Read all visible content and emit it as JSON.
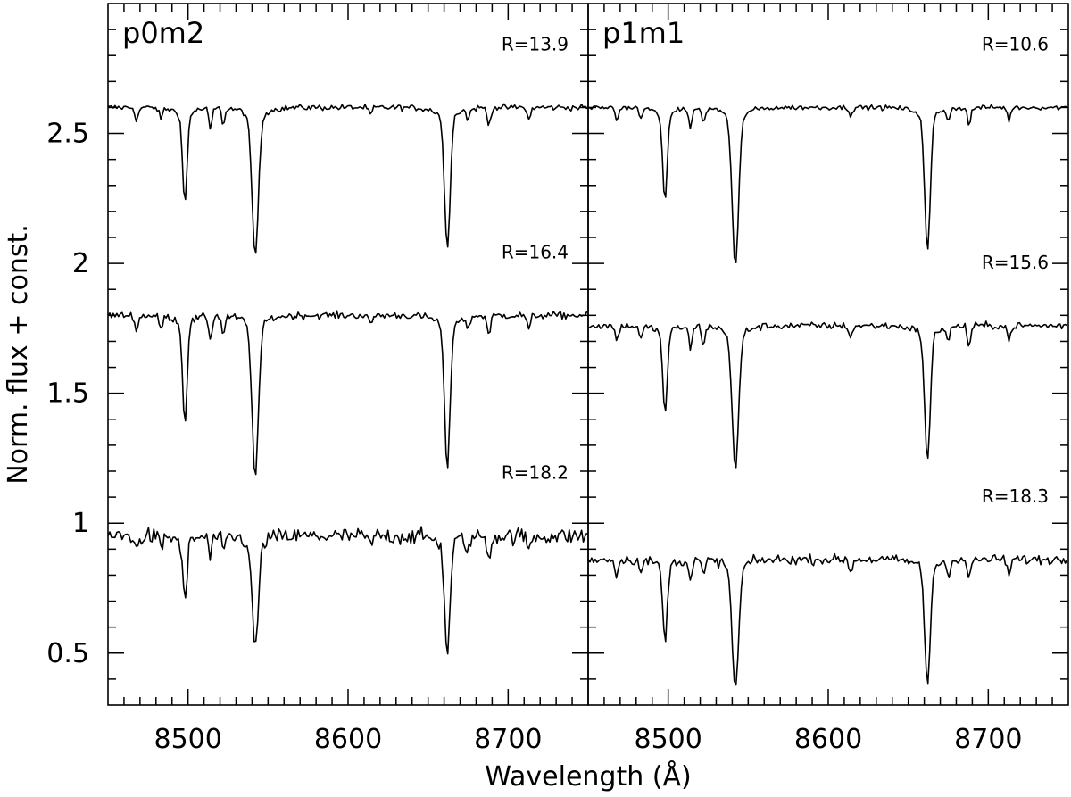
{
  "chart_data": {
    "type": "line",
    "ylabel": "Norm. flux + const.",
    "xlabel": "Wavelength (Å)",
    "xlim": [
      8450,
      8750
    ],
    "ylim": [
      0.3,
      3.0
    ],
    "x_ticks": [
      8500,
      8600,
      8700
    ],
    "y_ticks": [
      0.5,
      1,
      1.5,
      2,
      2.5
    ],
    "x_tick_labels": [
      "8500",
      "8600",
      "8700"
    ],
    "y_tick_labels": [
      "0.5",
      "1",
      "1.5",
      "2",
      "2.5"
    ],
    "grid": false,
    "line_color": "#000000",
    "panels": [
      {
        "title": "p0m2",
        "spectra": [
          {
            "label": "R=13.9",
            "continuum": 2.6,
            "noise": 0.025,
            "depths": {
              "8498": 0.33,
              "8542": 0.51,
              "8662": 0.49
            },
            "minor_lines": [
              [
                8468,
                0.05
              ],
              [
                8483,
                0.04
              ],
              [
                8514,
                0.08
              ],
              [
                8522,
                0.06
              ],
              [
                8614,
                0.03
              ],
              [
                8675,
                0.04
              ],
              [
                8688,
                0.07
              ],
              [
                8713,
                0.05
              ]
            ]
          },
          {
            "label": "R=16.4",
            "continuum": 1.8,
            "noise": 0.03,
            "depths": {
              "8498": 0.37,
              "8542": 0.55,
              "8662": 0.53
            },
            "minor_lines": [
              [
                8468,
                0.06
              ],
              [
                8483,
                0.05
              ],
              [
                8514,
                0.09
              ],
              [
                8522,
                0.07
              ],
              [
                8614,
                0.04
              ],
              [
                8675,
                0.05
              ],
              [
                8688,
                0.08
              ],
              [
                8713,
                0.06
              ]
            ]
          },
          {
            "label": "R=18.2",
            "continuum": 0.95,
            "noise": 0.07,
            "depths": {
              "8498": 0.22,
              "8542": 0.38,
              "8662": 0.4
            },
            "minor_lines": [
              [
                8468,
                0.06
              ],
              [
                8483,
                0.05
              ],
              [
                8514,
                0.08
              ],
              [
                8522,
                0.07
              ],
              [
                8614,
                0.04
              ],
              [
                8675,
                0.06
              ],
              [
                8688,
                0.09
              ],
              [
                8713,
                0.06
              ]
            ]
          }
        ]
      },
      {
        "title": "p1m1",
        "spectra": [
          {
            "label": "R=10.6",
            "continuum": 2.6,
            "noise": 0.02,
            "depths": {
              "8498": 0.33,
              "8542": 0.55,
              "8662": 0.5
            },
            "minor_lines": [
              [
                8468,
                0.05
              ],
              [
                8483,
                0.04
              ],
              [
                8514,
                0.08
              ],
              [
                8522,
                0.06
              ],
              [
                8614,
                0.03
              ],
              [
                8675,
                0.04
              ],
              [
                8688,
                0.07
              ],
              [
                8713,
                0.05
              ]
            ]
          },
          {
            "label": "R=15.6",
            "continuum": 1.76,
            "noise": 0.03,
            "depths": {
              "8498": 0.3,
              "8542": 0.5,
              "8662": 0.47
            },
            "minor_lines": [
              [
                8468,
                0.06
              ],
              [
                8483,
                0.05
              ],
              [
                8514,
                0.09
              ],
              [
                8522,
                0.07
              ],
              [
                8614,
                0.05
              ],
              [
                8675,
                0.05
              ],
              [
                8688,
                0.08
              ],
              [
                8713,
                0.06
              ]
            ]
          },
          {
            "label": "R=18.3",
            "continuum": 0.86,
            "noise": 0.04,
            "depths": {
              "8498": 0.28,
              "8542": 0.45,
              "8662": 0.43
            },
            "minor_lines": [
              [
                8468,
                0.06
              ],
              [
                8483,
                0.05
              ],
              [
                8514,
                0.08
              ],
              [
                8522,
                0.06
              ],
              [
                8614,
                0.05
              ],
              [
                8675,
                0.05
              ],
              [
                8688,
                0.08
              ],
              [
                8713,
                0.06
              ]
            ]
          }
        ]
      }
    ]
  }
}
